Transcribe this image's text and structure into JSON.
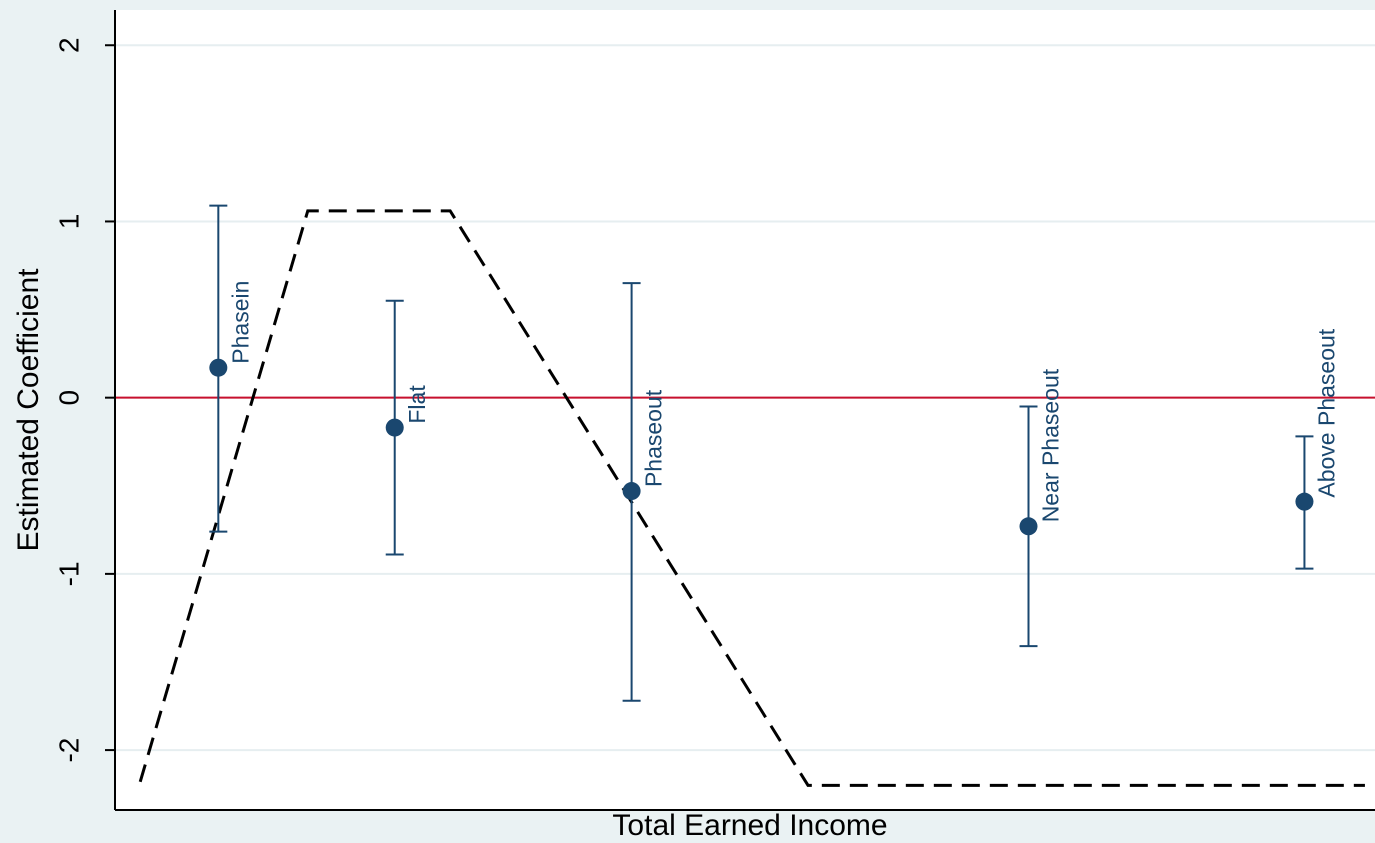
{
  "chart_data": {
    "type": "scatter",
    "x_label": "Total Earned Income",
    "y_label": "Estimated Coefficient",
    "xlim": [
      0,
      100
    ],
    "ylim": [
      -2.34,
      2.2
    ],
    "yticks": [
      -2,
      -1,
      0,
      1,
      2
    ],
    "grid": true,
    "reference_line": {
      "y": 0,
      "color": "#c8102e"
    },
    "points": {
      "labels": [
        "Phasein",
        "Flat",
        "Phaseout",
        "Near Phaseout",
        "Above Phaseout"
      ],
      "x": [
        8.2,
        22.2,
        41.0,
        72.5,
        94.4
      ],
      "values": [
        0.17,
        -0.17,
        -0.53,
        -0.73,
        -0.59
      ],
      "lower": [
        -0.76,
        -0.89,
        -1.72,
        -1.41,
        -0.97
      ],
      "upper": [
        1.09,
        0.55,
        0.65,
        -0.05,
        -0.22
      ],
      "color": "#1a476f"
    },
    "schedule": {
      "x": [
        2.0,
        15.3,
        26.6,
        55.0,
        99.2
      ],
      "values": [
        -2.18,
        1.06,
        1.06,
        -2.2,
        -2.2
      ],
      "color": "#000000"
    }
  }
}
